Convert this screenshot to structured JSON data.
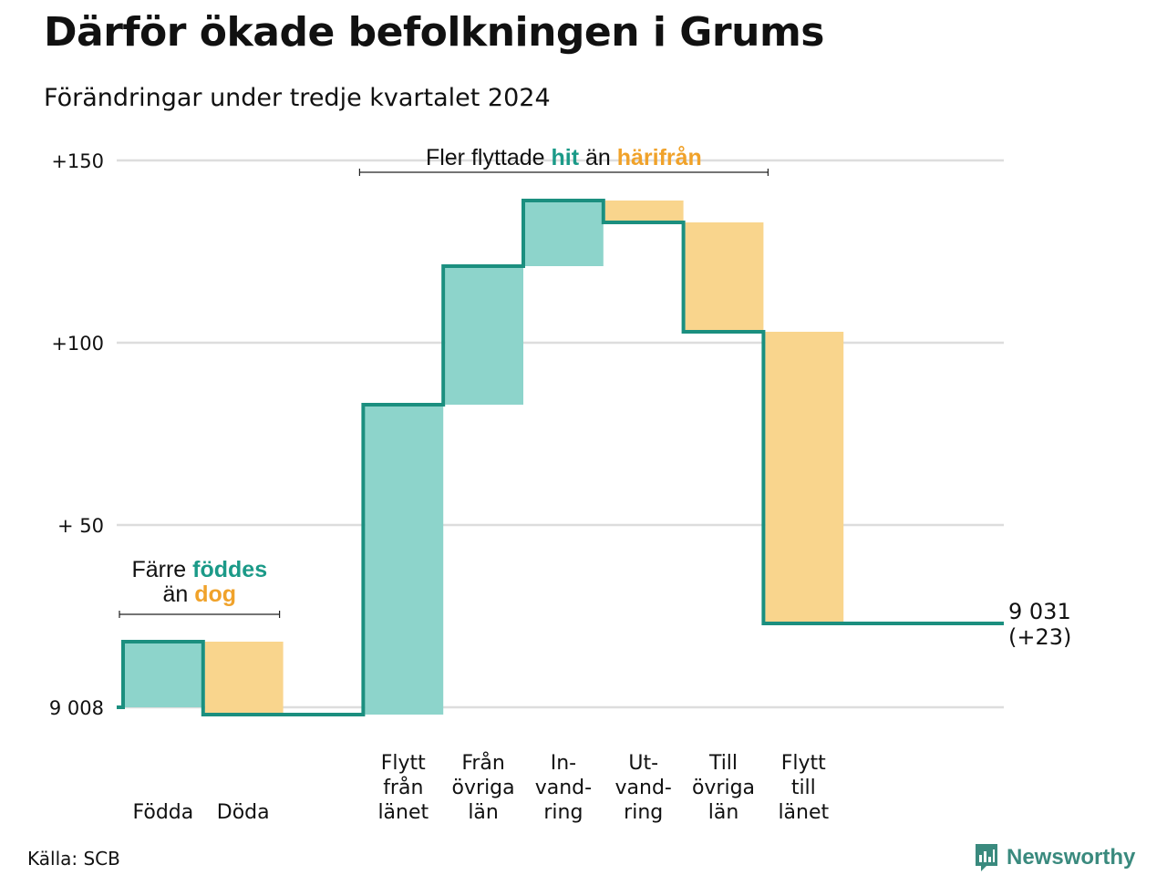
{
  "title": "Därför ökade befolkningen i Grums",
  "subtitle": "Förändringar under tredje kvartalet 2024",
  "source": "Källa: SCB",
  "brand": {
    "name": "Newsworthy"
  },
  "colors": {
    "in": "#8dd4cb",
    "out": "#f9d58d",
    "line": "#1b8f7f",
    "grid": "#dddddd",
    "accent_green": "#1b9a88",
    "accent_orange": "#f0a22a"
  },
  "chart_data": {
    "type": "waterfall",
    "baseline_value": 9008,
    "baseline_label": "9 008",
    "ylim": [
      -3,
      153
    ],
    "y_ticks": [
      {
        "value": 0,
        "label": "9 008"
      },
      {
        "value": 50,
        "label": "+ 50"
      },
      {
        "value": 100,
        "label": "+100"
      },
      {
        "value": 150,
        "label": "+150"
      }
    ],
    "steps": [
      {
        "label": [
          "Födda"
        ],
        "value": 18,
        "kind": "in"
      },
      {
        "label": [
          "Döda"
        ],
        "value": -20,
        "kind": "out"
      },
      {
        "label": [],
        "value": 0,
        "kind": "gap"
      },
      {
        "label": [
          "Flytt",
          "från",
          "länet"
        ],
        "value": 85,
        "kind": "in"
      },
      {
        "label": [
          "Från",
          "övriga",
          "län"
        ],
        "value": 38,
        "kind": "in"
      },
      {
        "label": [
          "In-",
          "vand-",
          "ring"
        ],
        "value": 18,
        "kind": "in"
      },
      {
        "label": [
          "Ut-",
          "vand-",
          "ring"
        ],
        "value": -6,
        "kind": "out"
      },
      {
        "label": [
          "Till",
          "övriga",
          "län"
        ],
        "value": -30,
        "kind": "out"
      },
      {
        "label": [
          "Flytt",
          "till",
          "länet"
        ],
        "value": -80,
        "kind": "out"
      }
    ],
    "end_value": 23,
    "end_label": [
      "9 031",
      "(+23)"
    ],
    "annotations": [
      {
        "segments": [
          {
            "text": "Färre ",
            "style": "normal"
          },
          {
            "text": "föddes",
            "style": "in"
          }
        ],
        "line2": [
          {
            "text": "än ",
            "style": "normal"
          },
          {
            "text": "dog",
            "style": "out"
          }
        ],
        "span": [
          0,
          1
        ]
      },
      {
        "segments": [
          {
            "text": "Fler flyttade ",
            "style": "normal"
          },
          {
            "text": "hit",
            "style": "in"
          },
          {
            "text": " än ",
            "style": "normal"
          },
          {
            "text": "härifrån",
            "style": "out"
          }
        ],
        "span": [
          3,
          8
        ]
      }
    ]
  }
}
